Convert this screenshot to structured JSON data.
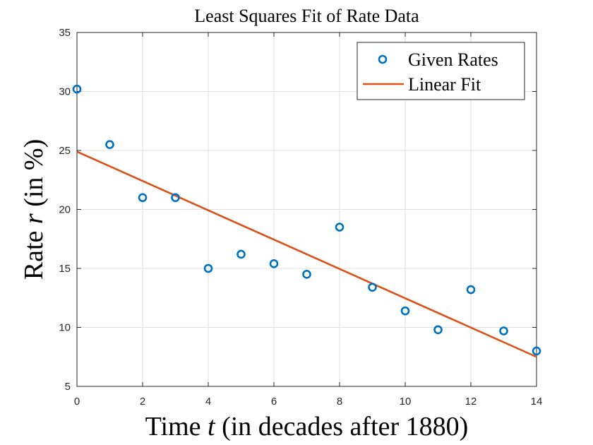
{
  "chart_data": {
    "type": "scatter",
    "title": "Least Squares Fit of Rate Data",
    "xlabel": {
      "before": "Time ",
      "var": "t",
      "after": " (in decades after 1880)"
    },
    "ylabel": {
      "before": "Rate ",
      "var": "r",
      "after": " (in %)"
    },
    "xlim": [
      0,
      14
    ],
    "ylim": [
      5,
      35
    ],
    "xticks": [
      0,
      2,
      4,
      6,
      8,
      10,
      12,
      14
    ],
    "yticks": [
      5,
      10,
      15,
      20,
      25,
      30,
      35
    ],
    "grid": true,
    "legend_position": "top-right",
    "series": [
      {
        "name": "Given Rates",
        "kind": "scatter",
        "marker": "circle",
        "color": "#0072BD",
        "x": [
          0,
          1,
          2,
          3,
          4,
          5,
          6,
          7,
          8,
          9,
          10,
          11,
          12,
          13,
          14
        ],
        "y": [
          30.2,
          25.5,
          21.0,
          21.0,
          15.0,
          16.2,
          15.4,
          14.5,
          18.5,
          13.4,
          11.4,
          9.8,
          13.2,
          9.7,
          8.0
        ]
      },
      {
        "name": "Linear Fit",
        "kind": "line",
        "color": "#D95319",
        "x": [
          0,
          14
        ],
        "y": [
          24.9,
          7.5
        ]
      }
    ]
  }
}
